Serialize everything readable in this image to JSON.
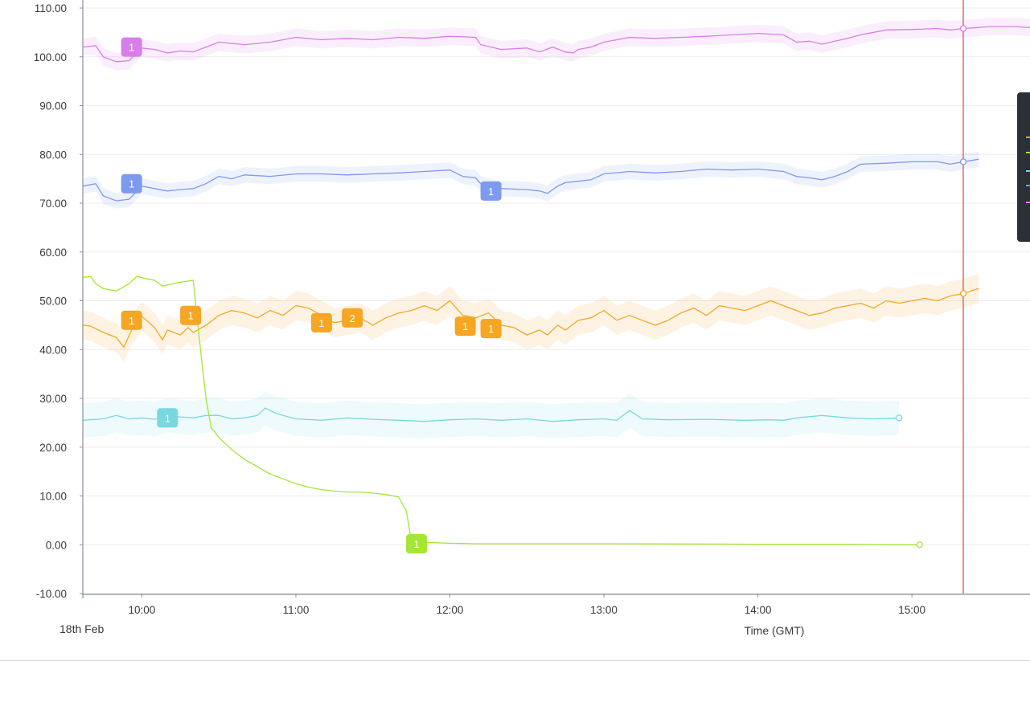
{
  "chart_data": {
    "type": "line",
    "title": "",
    "xlabel": "Time (GMT)",
    "date_label": "18th Feb",
    "ylabel": "",
    "ylim": [
      -10,
      110
    ],
    "y_ticks": [
      "110.00",
      "100.00",
      "90.00",
      "80.00",
      "70.00",
      "60.00",
      "50.00",
      "40.00",
      "30.00",
      "20.00",
      "10.00",
      "0.00",
      "-10.00"
    ],
    "x_ticks": [
      "10:00",
      "11:00",
      "12:00",
      "13:00",
      "14:00",
      "15:00"
    ],
    "x_range": [
      "09:37",
      "15:46"
    ],
    "grid": true,
    "cursor_time": "15:20",
    "colors": {
      "magenta": "#d97ee8",
      "blue": "#7c9af0",
      "green": "#a3e635",
      "orange": "#f5a623",
      "cyan": "#79d7e0",
      "cursor": "#e04a3a"
    },
    "series": [
      {
        "color": "#d97ee8",
        "band": 1.8,
        "points": [
          [
            "09:37",
            102
          ],
          [
            "09:42",
            102.3
          ],
          [
            "09:45",
            100
          ],
          [
            "09:50",
            99
          ],
          [
            "09:55",
            99.2
          ],
          [
            "10:00",
            101.8
          ],
          [
            "10:05",
            101.5
          ],
          [
            "10:10",
            100.8
          ],
          [
            "10:15",
            101.2
          ],
          [
            "10:20",
            101
          ],
          [
            "10:25",
            102
          ],
          [
            "10:30",
            103
          ],
          [
            "10:40",
            102.5
          ],
          [
            "10:50",
            103
          ],
          [
            "11:00",
            104
          ],
          [
            "11:10",
            103.5
          ],
          [
            "11:20",
            103.8
          ],
          [
            "11:30",
            103.5
          ],
          [
            "11:40",
            104
          ],
          [
            "11:50",
            103.8
          ],
          [
            "12:00",
            104.2
          ],
          [
            "12:10",
            104
          ],
          [
            "12:12",
            102.5
          ],
          [
            "12:20",
            101.5
          ],
          [
            "12:30",
            101.8
          ],
          [
            "12:35",
            101
          ],
          [
            "12:40",
            102
          ],
          [
            "12:45",
            101
          ],
          [
            "12:48",
            100.8
          ],
          [
            "12:50",
            101.5
          ],
          [
            "12:55",
            102
          ],
          [
            "13:00",
            103
          ],
          [
            "13:10",
            104
          ],
          [
            "13:20",
            103.8
          ],
          [
            "13:30",
            104
          ],
          [
            "13:40",
            104.2
          ],
          [
            "13:50",
            104.5
          ],
          [
            "14:00",
            104.8
          ],
          [
            "14:10",
            104.5
          ],
          [
            "14:15",
            103
          ],
          [
            "14:20",
            103.2
          ],
          [
            "14:25",
            102.6
          ],
          [
            "14:30",
            103.2
          ],
          [
            "14:35",
            103.8
          ],
          [
            "14:40",
            104.5
          ],
          [
            "14:50",
            105.5
          ],
          [
            "15:00",
            105.6
          ],
          [
            "15:10",
            105.8
          ],
          [
            "15:15",
            105.5
          ],
          [
            "15:20",
            105.8
          ],
          [
            "15:26",
            106
          ],
          [
            "15:30",
            106.2
          ],
          [
            "15:40",
            106.2
          ],
          [
            "15:46",
            106
          ]
        ],
        "markers": [
          {
            "time": "09:56",
            "value": 102,
            "label": "1"
          }
        ],
        "end_point": [
          "15:20",
          105.8
        ]
      },
      {
        "color": "#7c9af0",
        "band": 1.6,
        "points": [
          [
            "09:37",
            73.5
          ],
          [
            "09:42",
            74
          ],
          [
            "09:45",
            71.5
          ],
          [
            "09:50",
            70.5
          ],
          [
            "09:55",
            70.8
          ],
          [
            "10:00",
            73.5
          ],
          [
            "10:05",
            73
          ],
          [
            "10:10",
            72.5
          ],
          [
            "10:15",
            72.8
          ],
          [
            "10:20",
            73
          ],
          [
            "10:25",
            74
          ],
          [
            "10:30",
            75.5
          ],
          [
            "10:35",
            75
          ],
          [
            "10:40",
            75.8
          ],
          [
            "10:50",
            75.5
          ],
          [
            "11:00",
            76
          ],
          [
            "11:10",
            76
          ],
          [
            "11:20",
            75.8
          ],
          [
            "11:30",
            76
          ],
          [
            "11:40",
            76.2
          ],
          [
            "11:50",
            76.5
          ],
          [
            "12:00",
            76.8
          ],
          [
            "12:05",
            75.5
          ],
          [
            "12:10",
            75.2
          ],
          [
            "12:12",
            74
          ],
          [
            "12:15",
            73.5
          ],
          [
            "12:20",
            73
          ],
          [
            "12:30",
            72.8
          ],
          [
            "12:35",
            72.5
          ],
          [
            "12:38",
            72
          ],
          [
            "12:42",
            73.5
          ],
          [
            "12:45",
            74.2
          ],
          [
            "12:50",
            74.5
          ],
          [
            "12:55",
            74.8
          ],
          [
            "13:00",
            76
          ],
          [
            "13:10",
            76.5
          ],
          [
            "13:20",
            76.2
          ],
          [
            "13:30",
            76.5
          ],
          [
            "13:40",
            77
          ],
          [
            "13:50",
            76.8
          ],
          [
            "14:00",
            77
          ],
          [
            "14:10",
            76.5
          ],
          [
            "14:15",
            75.5
          ],
          [
            "14:20",
            75.2
          ],
          [
            "14:25",
            74.8
          ],
          [
            "14:30",
            75.5
          ],
          [
            "14:35",
            76.5
          ],
          [
            "14:40",
            78
          ],
          [
            "14:50",
            78.2
          ],
          [
            "15:00",
            78.5
          ],
          [
            "15:10",
            78.5
          ],
          [
            "15:15",
            78
          ],
          [
            "15:20",
            78.5
          ],
          [
            "15:26",
            79
          ]
        ],
        "markers": [
          {
            "time": "09:56",
            "value": 74,
            "label": "1"
          },
          {
            "time": "12:16",
            "value": 72.5,
            "label": "1"
          }
        ],
        "end_point": [
          "15:20",
          78.5
        ]
      },
      {
        "color": "#f5a623",
        "band": 3,
        "points": [
          [
            "09:37",
            45
          ],
          [
            "09:40",
            44.8
          ],
          [
            "09:45",
            43.5
          ],
          [
            "09:50",
            42.5
          ],
          [
            "09:53",
            40.5
          ],
          [
            "09:56",
            44
          ],
          [
            "10:00",
            46.8
          ],
          [
            "10:05",
            44.5
          ],
          [
            "10:08",
            42
          ],
          [
            "10:10",
            44
          ],
          [
            "10:15",
            43
          ],
          [
            "10:18",
            44.5
          ],
          [
            "10:20",
            43.5
          ],
          [
            "10:25",
            45
          ],
          [
            "10:30",
            47
          ],
          [
            "10:35",
            48
          ],
          [
            "10:40",
            47.5
          ],
          [
            "10:45",
            46.5
          ],
          [
            "10:50",
            48
          ],
          [
            "10:55",
            47
          ],
          [
            "11:00",
            49
          ],
          [
            "11:05",
            48.5
          ],
          [
            "11:10",
            47
          ],
          [
            "11:15",
            45.5
          ],
          [
            "11:20",
            46
          ],
          [
            "11:25",
            46.5
          ],
          [
            "11:30",
            45
          ],
          [
            "11:35",
            46.5
          ],
          [
            "11:40",
            47.5
          ],
          [
            "11:45",
            48
          ],
          [
            "11:50",
            49
          ],
          [
            "11:55",
            48
          ],
          [
            "12:00",
            50
          ],
          [
            "12:05",
            47
          ],
          [
            "12:10",
            46.5
          ],
          [
            "12:15",
            47.5
          ],
          [
            "12:20",
            45
          ],
          [
            "12:25",
            44.5
          ],
          [
            "12:30",
            43
          ],
          [
            "12:35",
            44
          ],
          [
            "12:38",
            43
          ],
          [
            "12:42",
            45
          ],
          [
            "12:45",
            44
          ],
          [
            "12:50",
            46
          ],
          [
            "12:55",
            46.5
          ],
          [
            "13:00",
            48
          ],
          [
            "13:05",
            46
          ],
          [
            "13:10",
            47
          ],
          [
            "13:15",
            46
          ],
          [
            "13:20",
            45
          ],
          [
            "13:25",
            46
          ],
          [
            "13:30",
            47.5
          ],
          [
            "13:35",
            48.5
          ],
          [
            "13:40",
            47
          ],
          [
            "13:45",
            49
          ],
          [
            "13:50",
            48.5
          ],
          [
            "13:55",
            48
          ],
          [
            "14:00",
            49
          ],
          [
            "14:05",
            50
          ],
          [
            "14:10",
            49
          ],
          [
            "14:15",
            48
          ],
          [
            "14:20",
            47
          ],
          [
            "14:25",
            47.5
          ],
          [
            "14:30",
            48.5
          ],
          [
            "14:35",
            49
          ],
          [
            "14:40",
            49.5
          ],
          [
            "14:45",
            48.5
          ],
          [
            "14:50",
            50
          ],
          [
            "14:55",
            49.5
          ],
          [
            "15:00",
            50
          ],
          [
            "15:05",
            50.5
          ],
          [
            "15:10",
            50
          ],
          [
            "15:15",
            51
          ],
          [
            "15:20",
            51.5
          ],
          [
            "15:26",
            52.5
          ]
        ],
        "markers": [
          {
            "time": "09:56",
            "value": 46,
            "label": "1"
          },
          {
            "time": "10:19",
            "value": 47,
            "label": "1"
          },
          {
            "time": "11:10",
            "value": 45.5,
            "label": "1"
          },
          {
            "time": "11:22",
            "value": 46.5,
            "label": "2"
          },
          {
            "time": "12:06",
            "value": 44.8,
            "label": "1"
          },
          {
            "time": "12:16",
            "value": 44.3,
            "label": "1"
          }
        ],
        "end_point": [
          "15:20",
          51.5
        ]
      },
      {
        "color": "#79d7e0",
        "band": 3.5,
        "points": [
          [
            "09:37",
            25.5
          ],
          [
            "09:45",
            25.8
          ],
          [
            "09:50",
            26.5
          ],
          [
            "09:55",
            25.8
          ],
          [
            "10:00",
            26
          ],
          [
            "10:05",
            25.7
          ],
          [
            "10:10",
            26.5
          ],
          [
            "10:15",
            26.2
          ],
          [
            "10:20",
            26
          ],
          [
            "10:25",
            26.5
          ],
          [
            "10:30",
            26.5
          ],
          [
            "10:35",
            25.8
          ],
          [
            "10:40",
            26
          ],
          [
            "10:45",
            26.5
          ],
          [
            "10:48",
            28
          ],
          [
            "10:52",
            27
          ],
          [
            "10:55",
            26.5
          ],
          [
            "11:00",
            25.8
          ],
          [
            "11:10",
            25.5
          ],
          [
            "11:20",
            26
          ],
          [
            "11:30",
            25.7
          ],
          [
            "11:40",
            25.5
          ],
          [
            "11:50",
            25.3
          ],
          [
            "12:00",
            25.6
          ],
          [
            "12:10",
            25.8
          ],
          [
            "12:20",
            25.5
          ],
          [
            "12:30",
            25.8
          ],
          [
            "12:40",
            25.3
          ],
          [
            "12:50",
            25.6
          ],
          [
            "13:00",
            25.8
          ],
          [
            "13:05",
            25.5
          ],
          [
            "13:10",
            27.5
          ],
          [
            "13:15",
            25.8
          ],
          [
            "13:25",
            25.6
          ],
          [
            "13:40",
            25.7
          ],
          [
            "13:55",
            25.5
          ],
          [
            "14:05",
            25.6
          ],
          [
            "14:10",
            25.5
          ],
          [
            "14:15",
            26
          ],
          [
            "14:25",
            26.5
          ],
          [
            "14:35",
            26
          ],
          [
            "14:45",
            25.8
          ],
          [
            "14:55",
            26
          ]
        ],
        "markers": [
          {
            "time": "10:10",
            "value": 26,
            "label": "1"
          }
        ],
        "end_point": [
          "14:55",
          26
        ]
      },
      {
        "color": "#a3e635",
        "band": 0,
        "points": [
          [
            "09:37",
            54.8
          ],
          [
            "09:40",
            55
          ],
          [
            "09:42",
            53.5
          ],
          [
            "09:45",
            52.5
          ],
          [
            "09:50",
            52
          ],
          [
            "09:55",
            53.5
          ],
          [
            "09:58",
            55
          ],
          [
            "10:02",
            54.5
          ],
          [
            "10:05",
            54.2
          ],
          [
            "10:08",
            53
          ],
          [
            "10:12",
            53.5
          ],
          [
            "10:15",
            53.8
          ],
          [
            "10:20",
            54.2
          ],
          [
            "10:22",
            44
          ],
          [
            "10:25",
            30
          ],
          [
            "10:27",
            24
          ],
          [
            "10:30",
            22
          ],
          [
            "10:35",
            19.5
          ],
          [
            "10:40",
            17.5
          ],
          [
            "10:45",
            16
          ],
          [
            "10:50",
            14.5
          ],
          [
            "10:55",
            13.5
          ],
          [
            "11:00",
            12.5
          ],
          [
            "11:05",
            11.8
          ],
          [
            "11:10",
            11.3
          ],
          [
            "11:15",
            11
          ],
          [
            "11:20",
            10.8
          ],
          [
            "11:25",
            10.8
          ],
          [
            "11:30",
            10.6
          ],
          [
            "11:35",
            10.3
          ],
          [
            "11:38",
            10
          ],
          [
            "11:40",
            9.8
          ],
          [
            "11:43",
            7
          ],
          [
            "11:44",
            4
          ],
          [
            "11:45",
            0.6
          ],
          [
            "11:55",
            0.4
          ],
          [
            "12:00",
            0.3
          ],
          [
            "12:10",
            0.2
          ],
          [
            "12:30",
            0.2
          ],
          [
            "13:00",
            0.2
          ],
          [
            "13:30",
            0.15
          ],
          [
            "14:00",
            0.1
          ],
          [
            "14:30",
            0.1
          ],
          [
            "15:03",
            0
          ]
        ],
        "markers": [
          {
            "time": "11:47",
            "value": 0.2,
            "label": "1"
          }
        ],
        "end_point": [
          "15:03",
          0
        ]
      }
    ]
  }
}
